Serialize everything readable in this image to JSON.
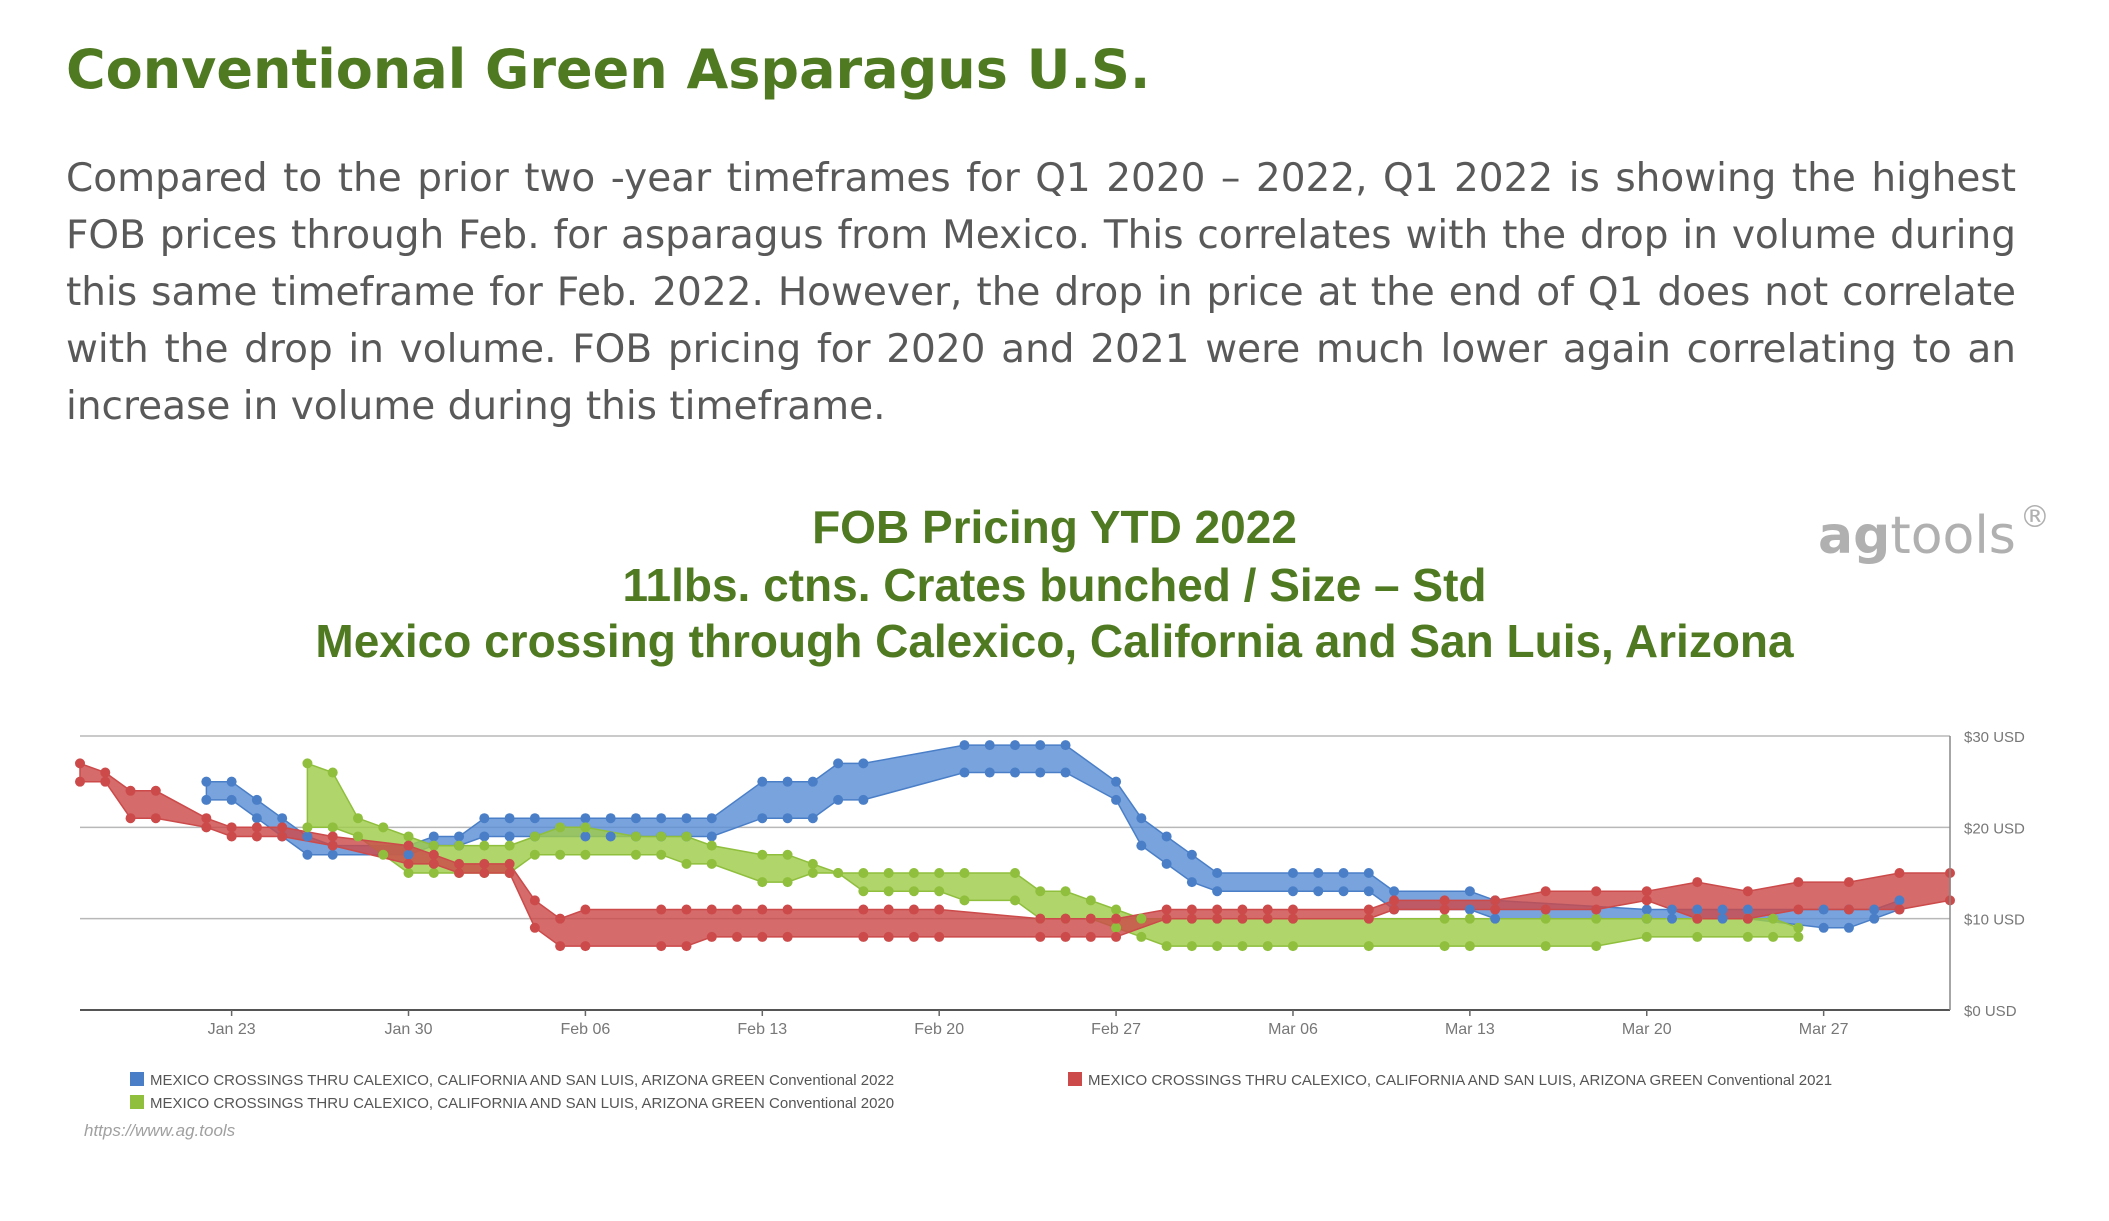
{
  "heading": "Conventional Green Asparagus U.S.",
  "paragraph": "Compared to the prior two -year timeframes for Q1 2020 – 2022, Q1 2022 is showing the highest FOB prices through Feb. for asparagus from Mexico.  This correlates with the drop in volume during this same timeframe for Feb. 2022.  However, the drop in price at the end of Q1 does not correlate with the drop in volume. FOB pricing for 2020 and 2021 were much lower again correlating to an increase in volume during this timeframe.",
  "logo": {
    "part1": "ag",
    "part2": "tools",
    "mark": "®"
  },
  "source_url": "https://www.ag.tools",
  "chart_data": {
    "type": "area",
    "title_lines": [
      "FOB Pricing YTD 2022",
      "11lbs. ctns. Crates bunched / Size – Std",
      "Mexico crossing through Calexico, California and San Luis, Arizona"
    ],
    "x_ticks": [
      "Jan 23",
      "Jan 30",
      "Feb 06",
      "Feb 13",
      "Feb 20",
      "Feb 27",
      "Mar 06",
      "Mar 13",
      "Mar 20",
      "Mar 27"
    ],
    "y_ticks": [
      "$0 USD",
      "$10 USD",
      "$20 USD",
      "$30 USD"
    ],
    "ylim": [
      0,
      30
    ],
    "grid": true,
    "legend_position": "bottom",
    "legend": [
      {
        "label": "MEXICO CROSSINGS THRU CALEXICO, CALIFORNIA AND SAN LUIS, ARIZONA  GREEN  Conventional 2022",
        "color": "#4a7fc8"
      },
      {
        "label": "MEXICO CROSSINGS THRU CALEXICO, CALIFORNIA AND SAN LUIS, ARIZONA  GREEN  Conventional 2021",
        "color": "#cc4a4a"
      },
      {
        "label": "MEXICO CROSSINGS THRU CALEXICO, CALIFORNIA AND SAN LUIS, ARIZONA  GREEN  Conventional 2020",
        "color": "#8fbf3c"
      }
    ],
    "series": [
      {
        "color": "#4a7fc8",
        "fill": "#5b8fd6",
        "x": [
          "2022-01-22",
          "2022-01-23",
          "2022-01-24",
          "2022-01-25",
          "2022-01-26",
          "2022-01-27",
          "2022-01-30",
          "2022-01-31",
          "2022-02-01",
          "2022-02-02",
          "2022-02-03",
          "2022-02-04",
          "2022-02-06",
          "2022-02-07",
          "2022-02-08",
          "2022-02-09",
          "2022-02-10",
          "2022-02-11",
          "2022-02-13",
          "2022-02-14",
          "2022-02-15",
          "2022-02-16",
          "2022-02-17",
          "2022-02-21",
          "2022-02-22",
          "2022-02-23",
          "2022-02-24",
          "2022-02-25",
          "2022-02-27",
          "2022-02-28",
          "2022-03-01",
          "2022-03-02",
          "2022-03-03",
          "2022-03-06",
          "2022-03-07",
          "2022-03-08",
          "2022-03-09",
          "2022-03-10",
          "2022-03-13",
          "2022-03-14",
          "2022-03-20",
          "2022-03-21",
          "2022-03-22",
          "2022-03-23",
          "2022-03-24",
          "2022-03-27",
          "2022-03-28",
          "2022-03-29",
          "2022-03-30"
        ],
        "high": [
          25,
          25,
          23,
          21,
          19,
          18,
          18,
          19,
          19,
          21,
          21,
          21,
          21,
          21,
          21,
          21,
          21,
          21,
          25,
          25,
          25,
          27,
          27,
          29,
          29,
          29,
          29,
          29,
          25,
          21,
          19,
          17,
          15,
          15,
          15,
          15,
          15,
          13,
          13,
          12,
          11,
          11,
          11,
          11,
          11,
          11,
          11,
          11,
          12
        ],
        "low": [
          23,
          23,
          21,
          19,
          17,
          17,
          17,
          18,
          18,
          19,
          19,
          19,
          19,
          19,
          19,
          19,
          19,
          19,
          21,
          21,
          21,
          23,
          23,
          26,
          26,
          26,
          26,
          26,
          23,
          18,
          16,
          14,
          13,
          13,
          13,
          13,
          13,
          11,
          11,
          10,
          10,
          10,
          10,
          10,
          10,
          9,
          9,
          10,
          11
        ]
      },
      {
        "color": "#cc4a4a",
        "fill": "#cc4a4a",
        "x": [
          "2022-01-17",
          "2022-01-18",
          "2022-01-19",
          "2022-01-20",
          "2022-01-22",
          "2022-01-23",
          "2022-01-24",
          "2022-01-25",
          "2022-01-27",
          "2022-01-30",
          "2022-01-31",
          "2022-02-01",
          "2022-02-02",
          "2022-02-03",
          "2022-02-04",
          "2022-02-05",
          "2022-02-06",
          "2022-02-09",
          "2022-02-10",
          "2022-02-11",
          "2022-02-12",
          "2022-02-13",
          "2022-02-14",
          "2022-02-17",
          "2022-02-18",
          "2022-02-19",
          "2022-02-20",
          "2022-02-24",
          "2022-02-25",
          "2022-02-26",
          "2022-02-27",
          "2022-03-01",
          "2022-03-02",
          "2022-03-03",
          "2022-03-04",
          "2022-03-05",
          "2022-03-06",
          "2022-03-09",
          "2022-03-10",
          "2022-03-12",
          "2022-03-14",
          "2022-03-16",
          "2022-03-18",
          "2022-03-20",
          "2022-03-22",
          "2022-03-24",
          "2022-03-26",
          "2022-03-28",
          "2022-03-30",
          "2022-04-01"
        ],
        "high": [
          27,
          26,
          24,
          24,
          21,
          20,
          20,
          20,
          19,
          18,
          17,
          16,
          16,
          16,
          12,
          10,
          11,
          11,
          11,
          11,
          11,
          11,
          11,
          11,
          11,
          11,
          11,
          10,
          10,
          10,
          10,
          11,
          11,
          11,
          11,
          11,
          11,
          11,
          12,
          12,
          12,
          13,
          13,
          13,
          14,
          13,
          14,
          14,
          15,
          15
        ],
        "low": [
          25,
          25,
          21,
          21,
          20,
          19,
          19,
          19,
          18,
          16,
          16,
          15,
          15,
          15,
          9,
          7,
          7,
          7,
          7,
          8,
          8,
          8,
          8,
          8,
          8,
          8,
          8,
          8,
          8,
          8,
          8,
          10,
          10,
          10,
          10,
          10,
          10,
          10,
          11,
          11,
          11,
          11,
          11,
          12,
          10,
          10,
          11,
          11,
          11,
          12
        ]
      },
      {
        "color": "#8fbf3c",
        "fill": "#9fcc4a",
        "x": [
          "2022-01-26",
          "2022-01-27",
          "2022-01-28",
          "2022-01-29",
          "2022-01-30",
          "2022-01-31",
          "2022-02-01",
          "2022-02-02",
          "2022-02-03",
          "2022-02-04",
          "2022-02-05",
          "2022-02-06",
          "2022-02-08",
          "2022-02-09",
          "2022-02-10",
          "2022-02-11",
          "2022-02-13",
          "2022-02-14",
          "2022-02-15",
          "2022-02-16",
          "2022-02-17",
          "2022-02-18",
          "2022-02-19",
          "2022-02-20",
          "2022-02-21",
          "2022-02-23",
          "2022-02-24",
          "2022-02-25",
          "2022-02-26",
          "2022-02-27",
          "2022-02-28",
          "2022-03-01",
          "2022-03-02",
          "2022-03-03",
          "2022-03-04",
          "2022-03-05",
          "2022-03-06",
          "2022-03-09",
          "2022-03-12",
          "2022-03-13",
          "2022-03-16",
          "2022-03-18",
          "2022-03-20",
          "2022-03-22",
          "2022-03-24",
          "2022-03-25",
          "2022-03-26"
        ],
        "high": [
          27,
          26,
          21,
          20,
          19,
          18,
          18,
          18,
          18,
          19,
          20,
          20,
          19,
          19,
          19,
          18,
          17,
          17,
          16,
          15,
          15,
          15,
          15,
          15,
          15,
          15,
          13,
          13,
          12,
          11,
          10,
          10,
          10,
          10,
          10,
          10,
          10,
          10,
          10,
          10,
          10,
          10,
          10,
          10,
          10,
          10,
          9
        ],
        "low": [
          20,
          20,
          19,
          17,
          15,
          15,
          15,
          15,
          15,
          17,
          17,
          17,
          17,
          17,
          16,
          16,
          14,
          14,
          15,
          15,
          13,
          13,
          13,
          13,
          12,
          12,
          10,
          10,
          10,
          9,
          8,
          7,
          7,
          7,
          7,
          7,
          7,
          7,
          7,
          7,
          7,
          7,
          8,
          8,
          8,
          8,
          8
        ]
      }
    ]
  }
}
